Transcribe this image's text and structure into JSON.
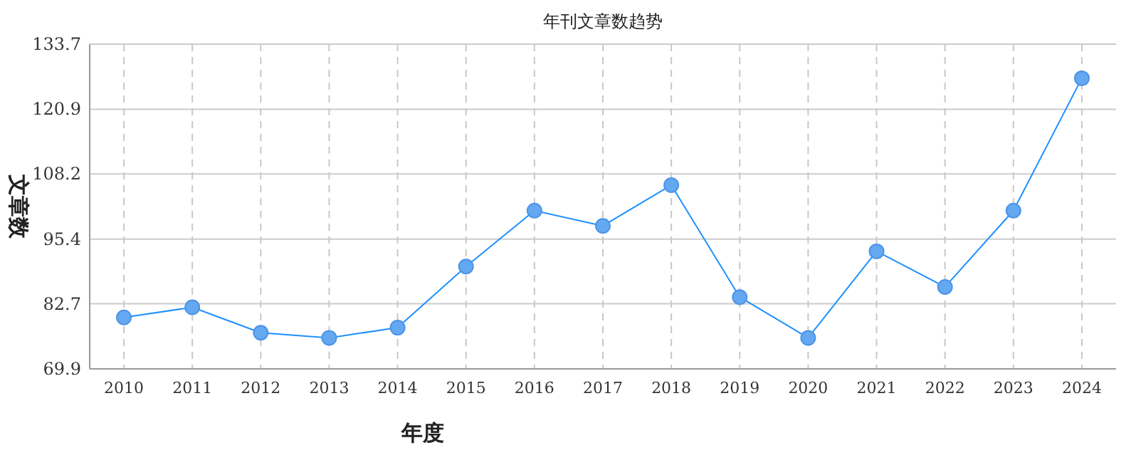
{
  "chart_data": {
    "type": "line",
    "title": "年刊文章数趋势",
    "xlabel": "年度",
    "ylabel": "文章数",
    "categories": [
      "2010",
      "2011",
      "2012",
      "2013",
      "2014",
      "2015",
      "2016",
      "2017",
      "2018",
      "2019",
      "2020",
      "2021",
      "2022",
      "2023",
      "2024"
    ],
    "series": [
      {
        "color": "#1e90ff",
        "values": [
          80,
          82,
          77,
          76,
          78,
          90,
          101,
          98,
          106,
          84,
          76,
          93,
          86,
          101,
          127
        ]
      }
    ],
    "ylim": [
      69.9,
      133.7
    ],
    "yticks": [
      69.9,
      82.7,
      95.4,
      108.2,
      120.9,
      133.7
    ],
    "grid": true,
    "marker": "circle"
  }
}
